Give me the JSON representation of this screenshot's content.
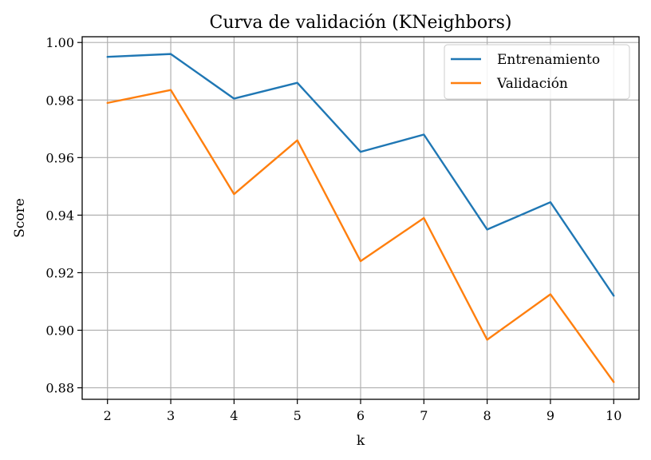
{
  "chart_data": {
    "type": "line",
    "title": "Curva de validación (KNeighbors)",
    "xlabel": "k",
    "ylabel": "Score",
    "x": [
      2,
      3,
      4,
      5,
      6,
      7,
      8,
      9,
      10
    ],
    "xlim": [
      1.6,
      10.4
    ],
    "ylim": [
      0.876,
      1.002
    ],
    "yticks": [
      0.88,
      0.9,
      0.92,
      0.94,
      0.96,
      0.98,
      1.0
    ],
    "ytick_labels": [
      "0.88",
      "0.90",
      "0.92",
      "0.94",
      "0.96",
      "0.98",
      "1.00"
    ],
    "xtick_labels": [
      "2",
      "3",
      "4",
      "5",
      "6",
      "7",
      "8",
      "9",
      "10"
    ],
    "grid": true,
    "legend_position": "top-right",
    "series": [
      {
        "name": "Entrenamiento",
        "color": "#1f77b4",
        "values": [
          0.995,
          0.996,
          0.9805,
          0.986,
          0.962,
          0.968,
          0.935,
          0.9445,
          0.912
        ]
      },
      {
        "name": "Validación",
        "color": "#ff7f0e",
        "values": [
          0.979,
          0.9835,
          0.9473,
          0.966,
          0.924,
          0.939,
          0.8967,
          0.9125,
          0.882
        ]
      }
    ]
  }
}
